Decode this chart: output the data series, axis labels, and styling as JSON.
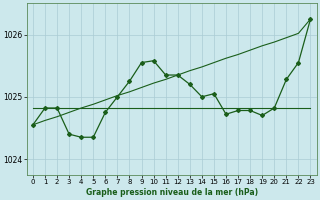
{
  "title": "Graphe pression niveau de la mer (hPa)",
  "bg_color": "#cce8ec",
  "grid_color": "#aaccd4",
  "line_color": "#1a5e1a",
  "x_ticks": [
    0,
    1,
    2,
    3,
    4,
    5,
    6,
    7,
    8,
    9,
    10,
    11,
    12,
    13,
    14,
    15,
    16,
    17,
    18,
    19,
    20,
    21,
    22,
    23
  ],
  "ylim": [
    1023.75,
    1026.5
  ],
  "yticks": [
    1024,
    1025,
    1026
  ],
  "series_main": [
    1024.55,
    1024.82,
    1024.82,
    1024.4,
    1024.35,
    1024.35,
    1024.75,
    1025.0,
    1025.25,
    1025.55,
    1025.58,
    1025.35,
    1025.35,
    1025.2,
    1025.0,
    1025.05,
    1024.72,
    1024.78,
    1024.78,
    1024.7,
    1024.82,
    1025.28,
    1025.55,
    1026.25
  ],
  "series_flat": [
    1024.82,
    1024.82,
    1024.82,
    1024.82,
    1024.82,
    1024.82,
    1024.82,
    1024.82,
    1024.82,
    1024.82,
    1024.82,
    1024.82,
    1024.82,
    1024.82,
    1024.82,
    1024.82,
    1024.82,
    1024.82,
    1024.82,
    1024.82,
    1024.82,
    1024.82,
    1024.82,
    1024.82
  ],
  "series_rise": [
    1024.55,
    1024.62,
    1024.68,
    1024.75,
    1024.82,
    1024.88,
    1024.95,
    1025.02,
    1025.08,
    1025.15,
    1025.22,
    1025.28,
    1025.35,
    1025.42,
    1025.48,
    1025.55,
    1025.62,
    1025.68,
    1025.75,
    1025.82,
    1025.88,
    1025.95,
    1026.02,
    1026.25
  ]
}
